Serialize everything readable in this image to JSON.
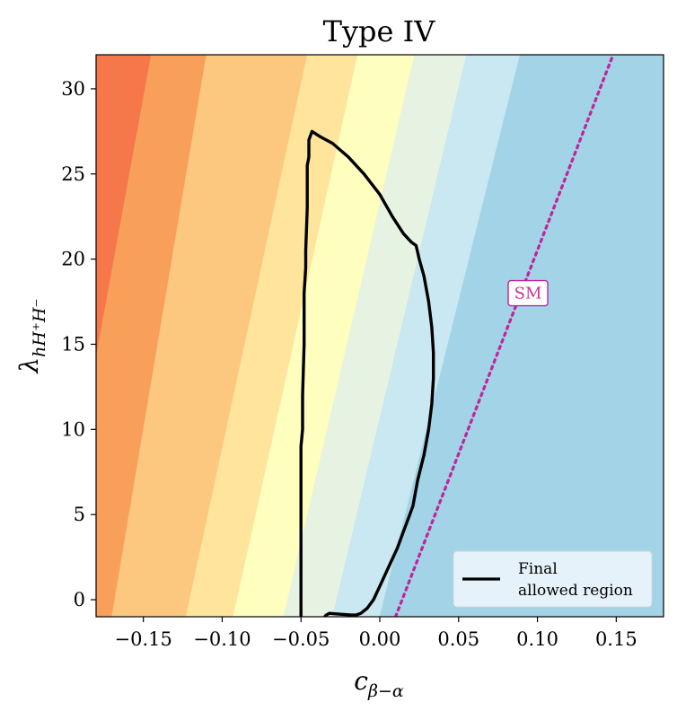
{
  "chart_data": {
    "type": "contour",
    "title": "Type IV",
    "xlabel_main": "c",
    "xlabel_sub": "β−α",
    "ylabel_main": "λ",
    "ylabel_sub": "hH⁺H⁻",
    "xlim": [
      -0.18,
      0.18
    ],
    "ylim": [
      -1,
      32
    ],
    "xticks": [
      -0.15,
      -0.1,
      -0.05,
      0.0,
      0.05,
      0.1,
      0.15
    ],
    "xtick_labels": [
      "−0.15",
      "−0.10",
      "−0.05",
      "0.00",
      "0.05",
      "0.10",
      "0.15"
    ],
    "yticks": [
      0,
      5,
      10,
      15,
      20,
      25,
      30
    ],
    "ytick_labels": [
      "0",
      "5",
      "10",
      "15",
      "20",
      "25",
      "30"
    ],
    "contour_fill_colors": [
      "#f5774a",
      "#f8a05a",
      "#fcc77e",
      "#fee59b",
      "#fefebf",
      "#e6f3e2",
      "#c9e8f1",
      "#a3d3e6",
      "#7ab3d5"
    ],
    "contour_boundaries": [
      {
        "y0_x": -0.21,
        "y32_x": -0.145
      },
      {
        "y0_x": -0.17,
        "y32_x": -0.11
      },
      {
        "y0_x": -0.123,
        "y32_x": -0.046
      },
      {
        "y0_x": -0.093,
        "y32_x": -0.014
      },
      {
        "y0_x": -0.061,
        "y32_x": 0.022
      },
      {
        "y0_x": -0.03,
        "y32_x": 0.055
      },
      {
        "y0_x": 0.0,
        "y32_x": 0.089
      }
    ],
    "sm_line": {
      "label": "SM",
      "color": "#c0249a",
      "y0_x": 0.01,
      "y32_x": 0.148,
      "label_at": [
        0.094,
        18.0
      ]
    },
    "allowed_region": {
      "label": "Final allowed region",
      "color": "#000000",
      "x": [
        -0.05,
        -0.05,
        -0.05,
        -0.05,
        -0.049,
        -0.049,
        -0.048,
        -0.048,
        -0.047,
        -0.047,
        -0.046,
        -0.046,
        -0.045,
        -0.045,
        -0.043,
        -0.038,
        -0.03,
        -0.02,
        -0.01,
        0.0,
        0.008,
        0.015,
        0.02,
        0.023,
        0.025,
        0.028,
        0.031,
        0.033,
        0.034,
        0.034,
        0.033,
        0.031,
        0.028,
        0.024,
        0.021,
        0.019,
        0.015,
        0.011,
        0.006,
        0.001,
        -0.004,
        -0.008,
        -0.012,
        -0.015,
        -0.018,
        -0.025,
        -0.032,
        -0.034,
        -0.035
      ],
      "y": [
        -1.0,
        3.0,
        6.0,
        9.0,
        10.0,
        12.0,
        15.0,
        18.0,
        19.5,
        20.5,
        23.0,
        25.5,
        26.0,
        27.0,
        27.5,
        27.2,
        26.8,
        26.0,
        25.0,
        23.8,
        22.5,
        21.5,
        21.0,
        20.8,
        20.0,
        19.0,
        17.5,
        16.0,
        14.5,
        13.0,
        11.5,
        10.0,
        8.5,
        7.0,
        5.5,
        5.0,
        4.0,
        3.0,
        2.0,
        1.0,
        0.0,
        -0.5,
        -0.8,
        -0.9,
        -0.9,
        -0.85,
        -0.8,
        -0.9,
        -1.0
      ]
    },
    "legend": {
      "lines": [
        "Final",
        "allowed region"
      ],
      "placement": "lower-right"
    },
    "grid": false
  }
}
